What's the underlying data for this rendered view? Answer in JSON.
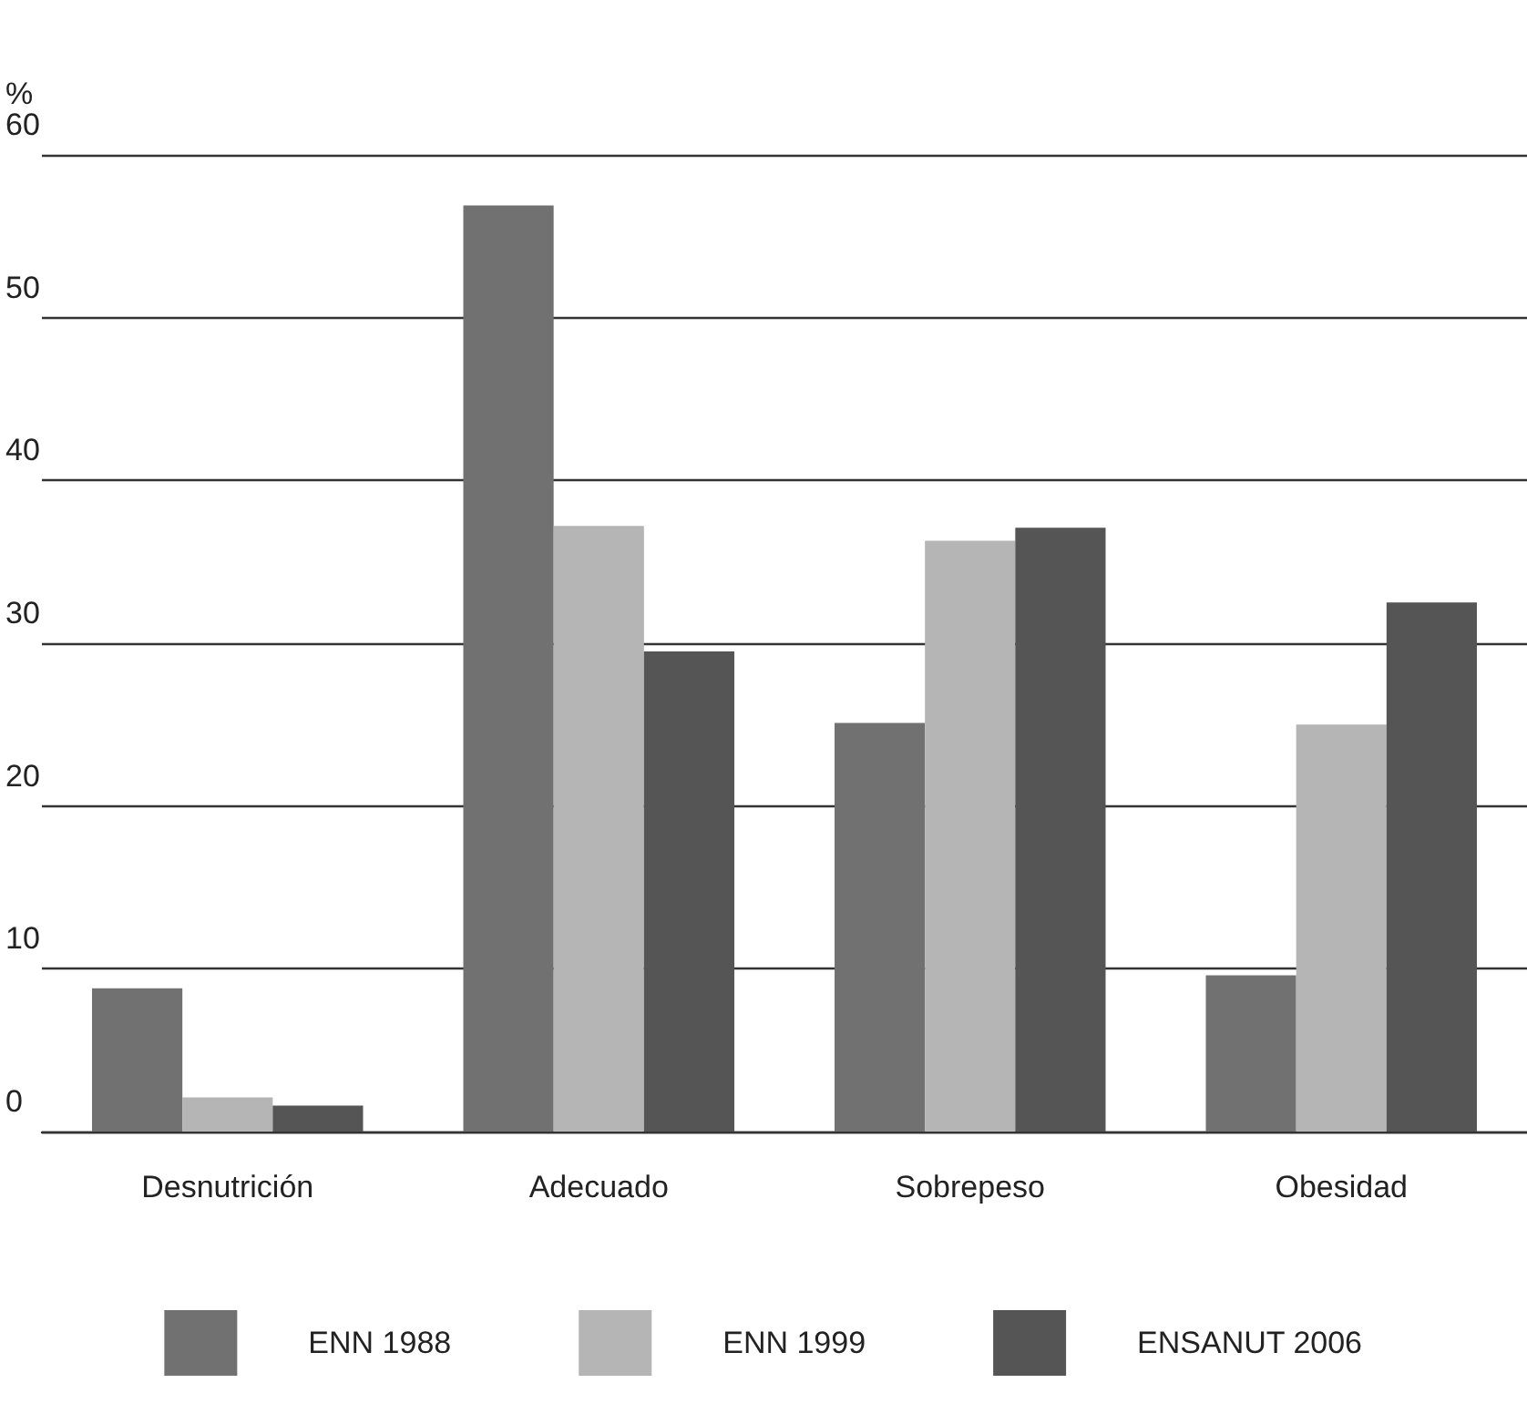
{
  "chart_data": {
    "type": "bar",
    "ylabel": "%",
    "categories": [
      "Desnutrición",
      "Adecuado",
      "Sobrepeso",
      "Obesidad"
    ],
    "series": [
      {
        "name": "ENN 1988",
        "color": "#717171",
        "values": [
          8.8,
          56.9,
          25.1,
          9.6
        ]
      },
      {
        "name": "ENN 1999",
        "color": "#b5b5b5",
        "values": [
          2.1,
          37.2,
          36.3,
          25.0
        ]
      },
      {
        "name": "ENSANUT 2006",
        "color": "#555555",
        "values": [
          1.6,
          29.5,
          37.1,
          32.5
        ]
      }
    ],
    "ylim": [
      0,
      60
    ],
    "yticks": [
      0,
      10,
      20,
      30,
      40,
      50,
      60
    ],
    "grid": "y",
    "legend": "bottom"
  }
}
